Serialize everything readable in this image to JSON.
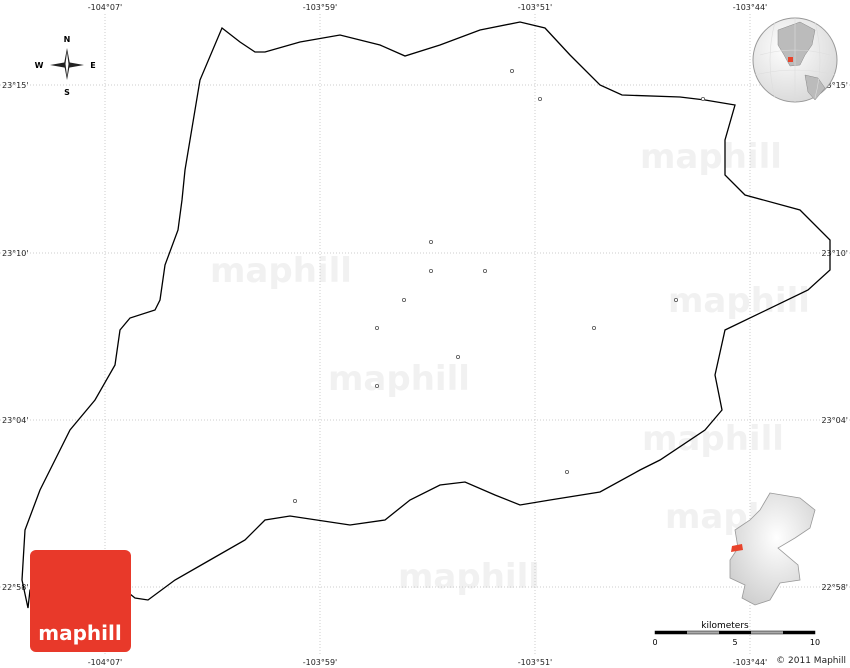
{
  "map": {
    "lon_labels": [
      "-104°07'",
      "-103°59'",
      "-103°51'",
      "-103°44'"
    ],
    "lat_labels": [
      "23°15'",
      "23°10'",
      "23°04'",
      "22°58'"
    ],
    "compass": {
      "n": "N",
      "s": "S",
      "e": "E",
      "w": "W"
    },
    "watermark": "maphill",
    "logo_text": "maphill",
    "scale": {
      "unit": "kilometers",
      "ticks": [
        "0",
        "5",
        "10"
      ]
    },
    "copyright": "© 2011 Maphill",
    "colors": {
      "highlight": "#e8432b",
      "logo": "#e8392a",
      "boundary": "#000000"
    }
  }
}
